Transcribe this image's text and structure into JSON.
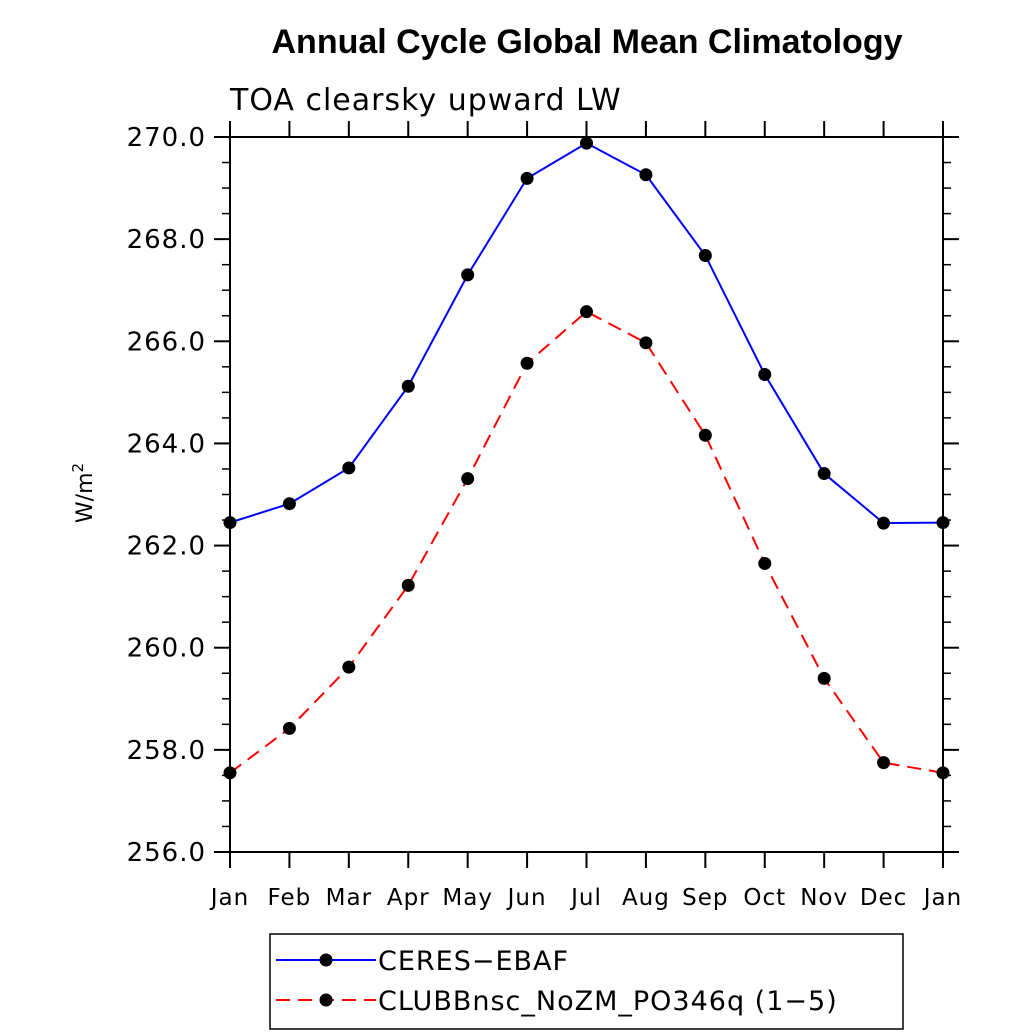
{
  "chart_data": {
    "type": "line",
    "title": "Annual Cycle Global Mean Climatology",
    "subtitle": "TOA clearsky upward LW",
    "ylabel": "W/m",
    "ylabel_sup": "2",
    "ylim": [
      256.0,
      270.0
    ],
    "yticks": [
      256.0,
      258.0,
      260.0,
      262.0,
      264.0,
      266.0,
      268.0,
      270.0
    ],
    "categories": [
      "Jan",
      "Feb",
      "Mar",
      "Apr",
      "May",
      "Jun",
      "Jul",
      "Aug",
      "Sep",
      "Oct",
      "Nov",
      "Dec",
      "Jan"
    ],
    "grid": false,
    "legend_position": "bottom",
    "series": [
      {
        "name": "CERES−EBAF",
        "color": "#0000ff",
        "dash": "solid",
        "values": [
          262.45,
          262.82,
          263.52,
          265.12,
          267.3,
          269.19,
          269.88,
          269.26,
          267.68,
          265.35,
          263.41,
          262.44,
          262.45
        ]
      },
      {
        "name": "CLUBBnsc_NoZM_PO346q (1−5)",
        "color": "#ff0000",
        "dash": "dashed",
        "values": [
          257.55,
          258.42,
          259.62,
          261.22,
          263.31,
          265.57,
          266.58,
          265.97,
          264.16,
          261.65,
          259.4,
          257.75,
          257.55
        ]
      }
    ]
  }
}
